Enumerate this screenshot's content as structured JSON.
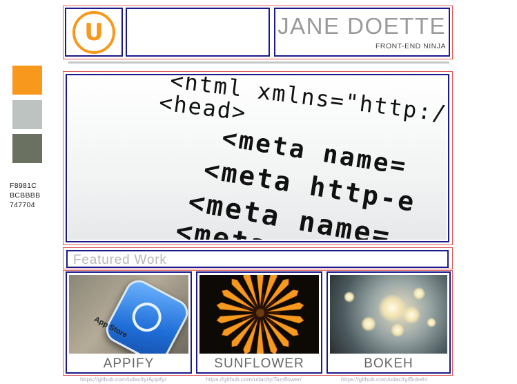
{
  "palette": {
    "colors": [
      "#F8981C",
      "#BCBBBB",
      "#747704"
    ],
    "swatch_display": [
      "#F8981C",
      "#BCC3C1",
      "#6B7160"
    ],
    "labels": [
      "F8981C",
      "BCBBBB",
      "747704"
    ]
  },
  "header": {
    "logo_letter": "U",
    "name": "JANE DOETTE",
    "tagline": "FRONT-END NINJA"
  },
  "hero": {
    "code_lines": [
      "<html xmlns=\"http://",
      "<head>",
      "<meta name=",
      "<meta http-e",
      "<meta name=",
      "<meta n"
    ]
  },
  "featured": {
    "heading": "Featured Work"
  },
  "works": [
    {
      "title": "APPIFY",
      "url": "https://github.com/udacity/Appify/",
      "thumb_text": "App Store"
    },
    {
      "title": "SUNFLOWER",
      "url": "https://github.com/udacity/Sunflower/"
    },
    {
      "title": "BOKEH",
      "url": "https://github.com/udacity/Bokeh/"
    }
  ]
}
